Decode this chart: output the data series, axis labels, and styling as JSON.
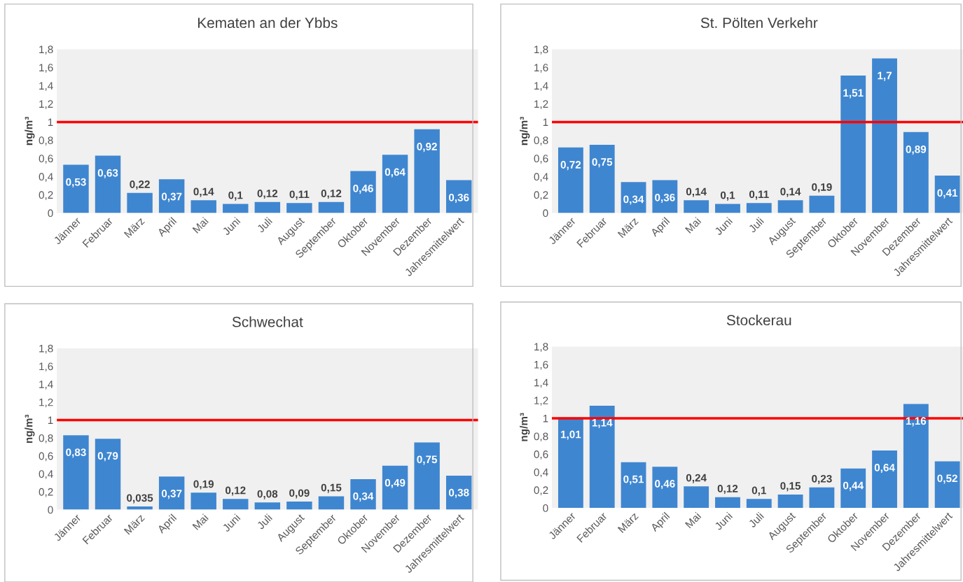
{
  "chart_data": [
    {
      "type": "bar",
      "title": "Kematen an der Ybbs",
      "ylabel": "ng/m³",
      "categories": [
        "Jänner",
        "Februar",
        "März",
        "April",
        "Mai",
        "Juni",
        "Juli",
        "August",
        "September",
        "Oktober",
        "November",
        "Dezember",
        "Jahresmittelwert"
      ],
      "color": "#3f86d0",
      "values": [
        0.53,
        0.63,
        0.22,
        0.37,
        0.14,
        0.1,
        0.12,
        0.11,
        0.12,
        0.46,
        0.64,
        0.92,
        0.36
      ],
      "value_labels": [
        "0,53",
        "0,63",
        "0,22",
        "0,37",
        "0,14",
        "0,1",
        "0,12",
        "0,11",
        "0,12",
        "0,46",
        "0,64",
        "0,92",
        "0,36"
      ],
      "ylim": [
        0,
        1.8
      ],
      "yticks": [
        0,
        {
          "value": 0.2,
          "label": "0,2"
        },
        {
          "value": 0.4,
          "label": "0,4"
        },
        {
          "value": 0.6,
          "label": "0,6"
        },
        {
          "value": 0.8,
          "label": "0,8"
        },
        1,
        {
          "value": 1.2,
          "label": "1,2"
        },
        {
          "value": 1.4,
          "label": "1,4"
        },
        {
          "value": 1.6,
          "label": "1,6"
        },
        {
          "value": 1.8,
          "label": "1,8"
        }
      ],
      "ref_lines": [
        {
          "axis": "y",
          "value": 1,
          "color": "#ff0000"
        }
      ],
      "grid": false,
      "legend": false
    },
    {
      "type": "bar",
      "title": "St. Pölten Verkehr",
      "ylabel": "ng/m³",
      "categories": [
        "Jänner",
        "Februar",
        "März",
        "April",
        "Mai",
        "Juni",
        "Juli",
        "August",
        "September",
        "Oktober",
        "November",
        "Dezember",
        "Jahresmittelwert"
      ],
      "color": "#3f86d0",
      "values": [
        0.72,
        0.75,
        0.34,
        0.36,
        0.14,
        0.1,
        0.11,
        0.14,
        0.19,
        1.51,
        1.7,
        0.89,
        0.41
      ],
      "value_labels": [
        "0,72",
        "0,75",
        "0,34",
        "0,36",
        "0,14",
        "0,1",
        "0,11",
        "0,14",
        "0,19",
        "1,51",
        "1,7",
        "0,89",
        "0,41"
      ],
      "ylim": [
        0,
        1.8
      ],
      "yticks": [
        0,
        {
          "value": 0.2,
          "label": "0,2"
        },
        {
          "value": 0.4,
          "label": "0,4"
        },
        {
          "value": 0.6,
          "label": "0,6"
        },
        {
          "value": 0.8,
          "label": "0,8"
        },
        1,
        {
          "value": 1.2,
          "label": "1,2"
        },
        {
          "value": 1.4,
          "label": "1,4"
        },
        {
          "value": 1.6,
          "label": "1,6"
        },
        {
          "value": 1.8,
          "label": "1,8"
        }
      ],
      "ref_lines": [
        {
          "axis": "y",
          "value": 1,
          "color": "#ff0000"
        }
      ],
      "grid": false,
      "legend": false
    },
    {
      "type": "bar",
      "title": "Schwechat",
      "ylabel": "ng/m³",
      "categories": [
        "Jänner",
        "Februar",
        "März",
        "April",
        "Mai",
        "Juni",
        "Juli",
        "August",
        "September",
        "Oktober",
        "November",
        "Dezember",
        "Jahresmittelwert"
      ],
      "color": "#3f86d0",
      "values": [
        0.83,
        0.79,
        0.035,
        0.37,
        0.19,
        0.12,
        0.08,
        0.09,
        0.15,
        0.34,
        0.49,
        0.75,
        0.38
      ],
      "value_labels": [
        "0,83",
        "0,79",
        "0,035",
        "0,37",
        "0,19",
        "0,12",
        "0,08",
        "0,09",
        "0,15",
        "0,34",
        "0,49",
        "0,75",
        "0,38"
      ],
      "ylim": [
        0,
        1.8
      ],
      "yticks": [
        0,
        {
          "value": 0.2,
          "label": "0,2"
        },
        {
          "value": 0.4,
          "label": "0,4"
        },
        {
          "value": 0.6,
          "label": "0,6"
        },
        {
          "value": 0.8,
          "label": "0,8"
        },
        1,
        {
          "value": 1.2,
          "label": "1,2"
        },
        {
          "value": 1.4,
          "label": "1,4"
        },
        {
          "value": 1.6,
          "label": "1,6"
        },
        {
          "value": 1.8,
          "label": "1,8"
        }
      ],
      "ref_lines": [
        {
          "axis": "y",
          "value": 1,
          "color": "#ff0000"
        }
      ],
      "grid": false,
      "legend": false
    },
    {
      "type": "bar",
      "title": "Stockerau",
      "ylabel": "ng/m³",
      "categories": [
        "Jänner",
        "Februar",
        "März",
        "April",
        "Mai",
        "Juni",
        "Juli",
        "August",
        "September",
        "Oktober",
        "November",
        "Dezember",
        "Jahresmittelwert"
      ],
      "color": "#3f86d0",
      "values": [
        1.01,
        1.14,
        0.51,
        0.46,
        0.24,
        0.12,
        0.1,
        0.15,
        0.23,
        0.44,
        0.64,
        1.16,
        0.52
      ],
      "value_labels": [
        "1,01",
        "1,14",
        "0,51",
        "0,46",
        "0,24",
        "0,12",
        "0,1",
        "0,15",
        "0,23",
        "0,44",
        "0,64",
        "1,16",
        "0,52"
      ],
      "ylim": [
        0,
        1.8
      ],
      "yticks": [
        0,
        {
          "value": 0.2,
          "label": "0,2"
        },
        {
          "value": 0.4,
          "label": "0,4"
        },
        {
          "value": 0.6,
          "label": "0,6"
        },
        {
          "value": 0.8,
          "label": "0,8"
        },
        1,
        {
          "value": 1.2,
          "label": "1,2"
        },
        {
          "value": 1.4,
          "label": "1,4"
        },
        {
          "value": 1.6,
          "label": "1,6"
        },
        {
          "value": 1.8,
          "label": "1,8"
        }
      ],
      "ref_lines": [
        {
          "axis": "y",
          "value": 1,
          "color": "#ff0000"
        }
      ],
      "grid": false,
      "legend": false
    }
  ]
}
